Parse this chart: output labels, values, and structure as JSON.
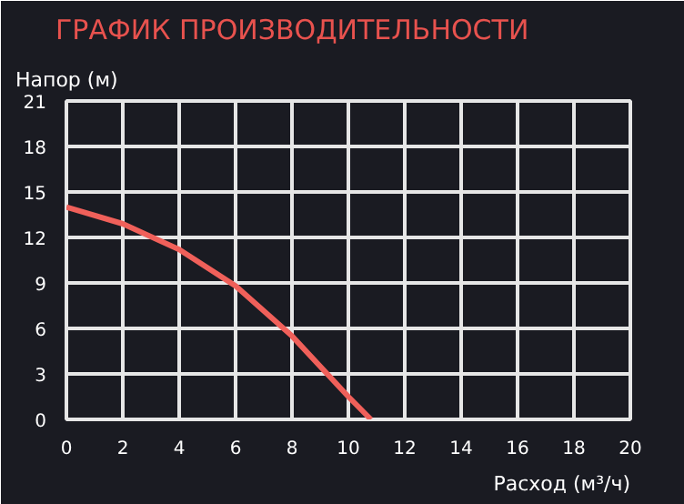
{
  "chart_data": {
    "type": "line",
    "title": "ГРАФИК ПРОИЗВОДИТЕЛЬНОСТИ",
    "xlabel": "Расход (м³/ч)",
    "ylabel": "Напор (м)",
    "x": [
      0,
      2,
      4,
      6,
      8,
      10,
      10.8
    ],
    "series": [
      {
        "color": "#f0605a",
        "values": [
          14.0,
          12.9,
          11.2,
          8.8,
          5.5,
          1.5,
          0
        ]
      }
    ],
    "xlim": [
      0,
      20
    ],
    "ylim": [
      0,
      21
    ],
    "xticks": [
      0,
      2,
      4,
      6,
      8,
      10,
      12,
      14,
      16,
      18,
      20
    ],
    "yticks": [
      0,
      3,
      6,
      9,
      12,
      15,
      18,
      21
    ],
    "grid": true,
    "marker": "none",
    "line_style": "solid"
  }
}
